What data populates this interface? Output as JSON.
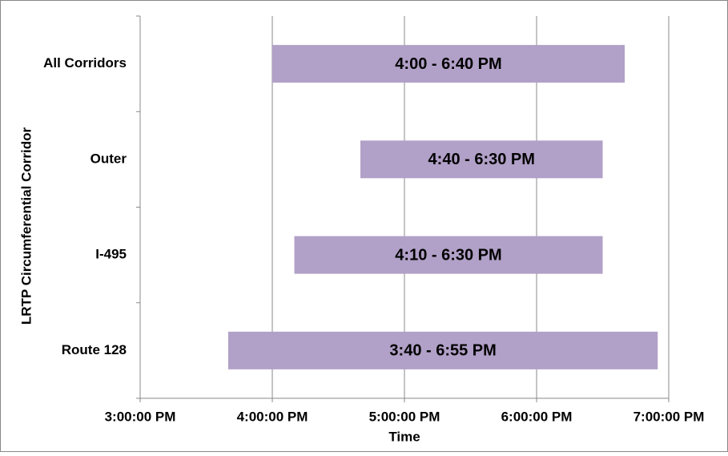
{
  "chart_data": {
    "type": "floating_bar",
    "orientation": "horizontal",
    "xlabel": "Time",
    "ylabel": "LRTP Circumferential Corridor",
    "categories": [
      "All Corridors",
      "Outer",
      "I-495",
      "Route 128"
    ],
    "start": [
      960,
      1000,
      970,
      940
    ],
    "end": [
      1120,
      1110,
      1110,
      1135
    ],
    "value_labels": [
      "4:00 - 6:40 PM",
      "4:40 - 6:30 PM",
      "4:10 - 6:30 PM",
      "3:40 - 6:55 PM"
    ],
    "color": "#b1a0c7",
    "xlim": [
      900,
      1140
    ],
    "xticks": [
      {
        "value": 900,
        "label": "3:00:00 PM"
      },
      {
        "value": 960,
        "label": "4:00:00 PM"
      },
      {
        "value": 1020,
        "label": "5:00:00 PM"
      },
      {
        "value": 1080,
        "label": "6:00:00 PM"
      },
      {
        "value": 1140,
        "label": "7:00:00 PM"
      }
    ],
    "grid": true
  }
}
